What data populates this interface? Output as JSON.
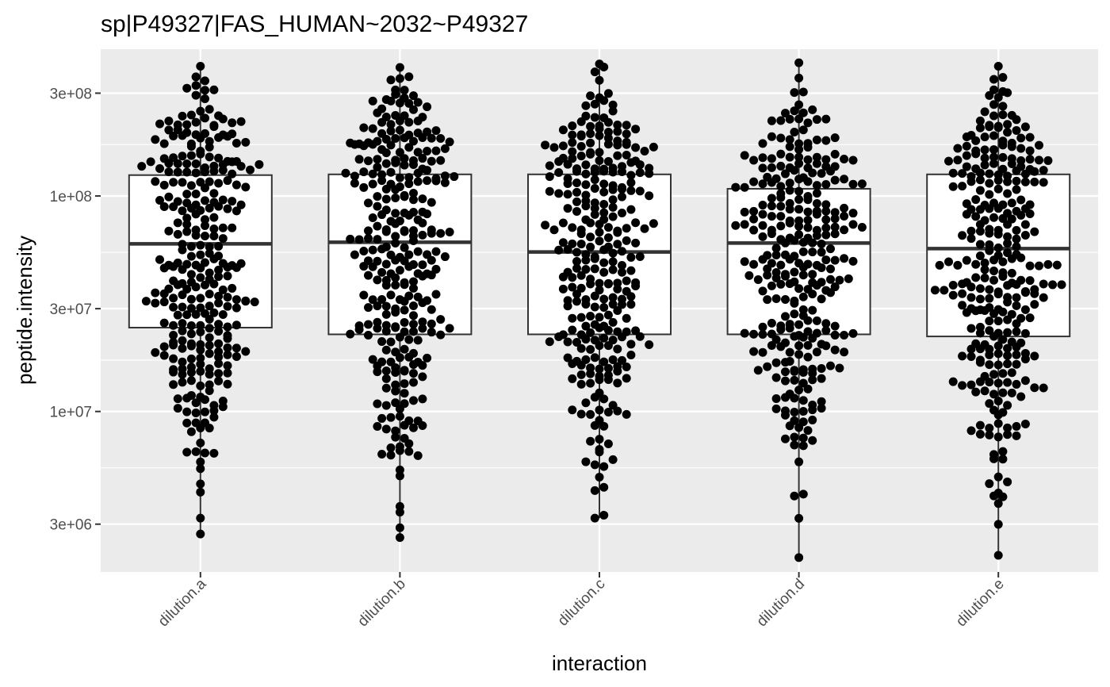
{
  "chart_data": {
    "type": "box",
    "title": "sp|P49327|FAS_HUMAN~2032~P49327",
    "xlabel": "interaction",
    "ylabel": "peptide.intensity",
    "y_scale": "log10",
    "ylim": [
      1800000,
      480000000
    ],
    "y_ticks": [
      {
        "value": 3000000,
        "label": "3e+06"
      },
      {
        "value": 10000000,
        "label": "1e+07"
      },
      {
        "value": 30000000,
        "label": "3e+07"
      },
      {
        "value": 100000000,
        "label": "1e+08"
      },
      {
        "value": 300000000,
        "label": "3e+08"
      }
    ],
    "y_minor_ticks": [
      1732000,
      5477000,
      17320000,
      54770000,
      173200000
    ],
    "categories": [
      "dilution.a",
      "dilution.b",
      "dilution.c",
      "dilution.d",
      "dilution.e"
    ],
    "boxes": [
      {
        "category": "dilution.a",
        "lower": 24500000,
        "q1": 24500000,
        "median": 60000000,
        "q3": 125000000,
        "upper": 125000000,
        "whisker_low": 2700000,
        "whisker_high": 400000000,
        "min_point": 2700000,
        "max_point": 400000000
      },
      {
        "category": "dilution.b",
        "lower": 22800000,
        "q1": 22800000,
        "median": 61000000,
        "q3": 126000000,
        "upper": 126000000,
        "whisker_low": 2600000,
        "whisker_high": 395000000,
        "min_point": 2600000,
        "max_point": 395000000
      },
      {
        "category": "dilution.c",
        "lower": 22800000,
        "q1": 22800000,
        "median": 55000000,
        "q3": 126000000,
        "upper": 126000000,
        "whisker_low": 3200000,
        "whisker_high": 410000000,
        "min_point": 3200000,
        "max_point": 410000000
      },
      {
        "category": "dilution.d",
        "lower": 22800000,
        "q1": 22800000,
        "median": 60500000,
        "q3": 108000000,
        "upper": 108000000,
        "whisker_low": 2100000,
        "whisker_high": 415000000,
        "min_point": 2100000,
        "max_point": 415000000
      },
      {
        "category": "dilution.e",
        "lower": 22300000,
        "q1": 22300000,
        "median": 57000000,
        "q3": 126000000,
        "upper": 126000000,
        "whisker_low": 2150000,
        "whisker_high": 400000000,
        "min_point": 2150000,
        "max_point": 400000000
      }
    ],
    "points_per_group": 300,
    "grid": true,
    "legend": "none",
    "colors": {
      "panel": "#ebebeb",
      "grid": "#ffffff",
      "box_fill": "#ffffff",
      "box_stroke": "#333333",
      "point": "#000000"
    }
  }
}
